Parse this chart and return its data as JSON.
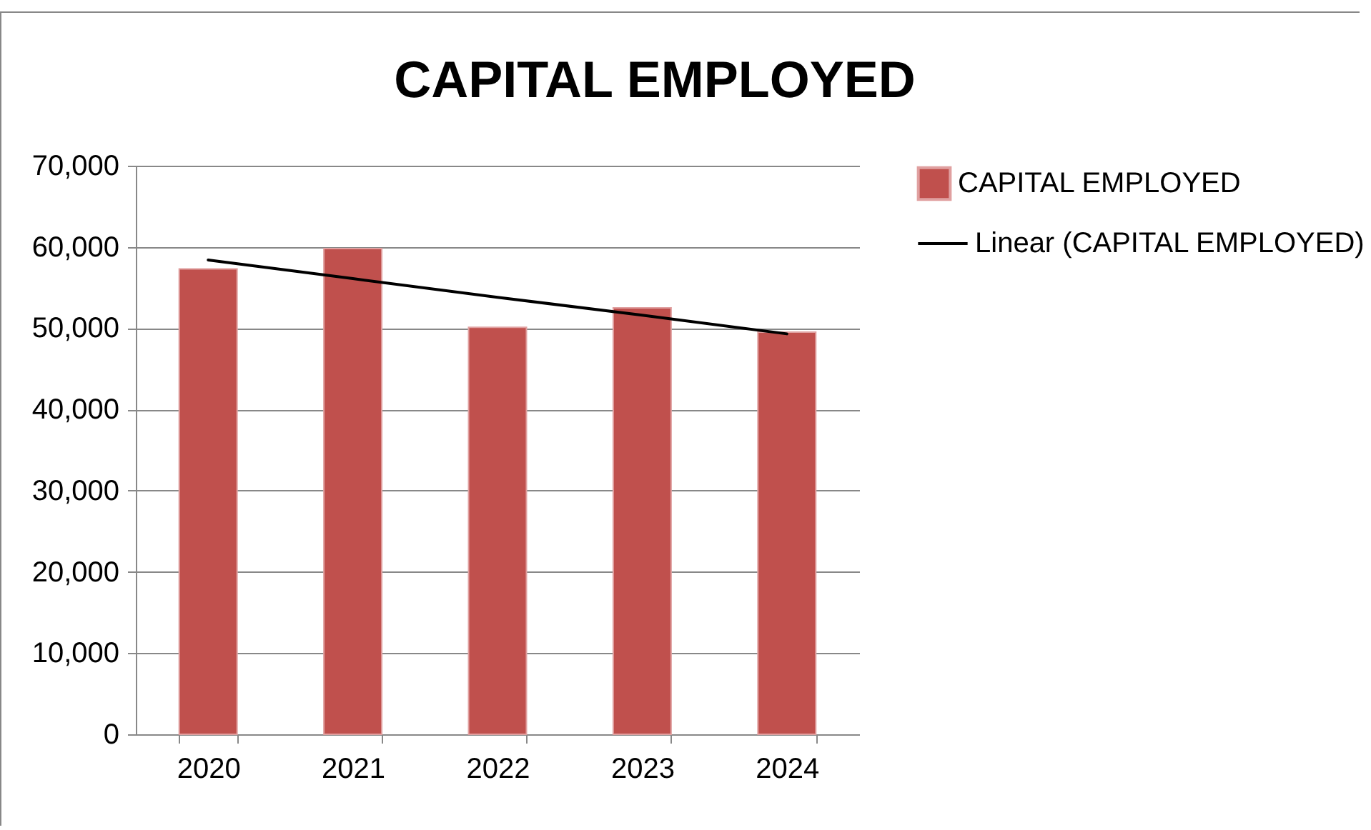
{
  "chart_data": {
    "type": "bar",
    "title": "CAPITAL EMPLOYED",
    "categories": [
      "2020",
      "2021",
      "2022",
      "2023",
      "2024"
    ],
    "series": [
      {
        "name": "CAPITAL EMPLOYED",
        "color": "#c0504d",
        "values": [
          57300,
          59800,
          50100,
          52500,
          49500
        ]
      },
      {
        "type": "line",
        "name": "Linear (CAPITAL EMPLOYED)",
        "color": "#000000",
        "values": [
          58400,
          56100,
          53800,
          51600,
          49300
        ]
      }
    ],
    "ylim": [
      0,
      70000
    ],
    "yticks": [
      {
        "value": 0,
        "label": "0"
      },
      {
        "value": 10000,
        "label": "10,000"
      },
      {
        "value": 20000,
        "label": "20,000"
      },
      {
        "value": 30000,
        "label": "30,000"
      },
      {
        "value": 40000,
        "label": "40,000"
      },
      {
        "value": 50000,
        "label": "50,000"
      },
      {
        "value": 60000,
        "label": "60,000"
      },
      {
        "value": 70000,
        "label": "70,000"
      }
    ],
    "grid": "y",
    "legend": "right"
  }
}
